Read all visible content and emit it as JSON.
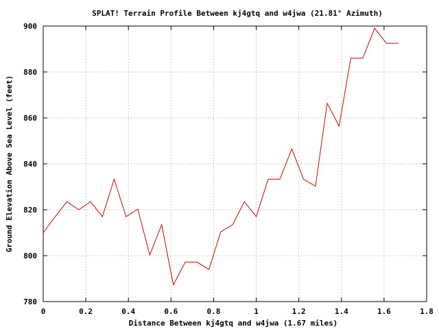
{
  "chart_data": {
    "type": "line",
    "title": "SPLAT! Terrain Profile Between kj4gtq and w4jwa (21.81° Azimuth)",
    "xlabel": "Distance Between kj4gtq and w4jwa (1.67 miles)",
    "ylabel": "Ground Elevation Above Sea Level (feet)",
    "xlim": [
      0,
      1.8
    ],
    "ylim": [
      780,
      900
    ],
    "xticks": [
      "0",
      "0.2",
      "0.4",
      "0.6",
      "0.8",
      "1",
      "1.2",
      "1.4",
      "1.6",
      "1.8"
    ],
    "yticks": [
      "780",
      "800",
      "820",
      "840",
      "860",
      "880",
      "900"
    ],
    "grid": true,
    "line_color": "#cc0000",
    "series": [
      {
        "x": [
          0,
          0.056,
          0.111,
          0.167,
          0.222,
          0.278,
          0.333,
          0.389,
          0.444,
          0.5,
          0.556,
          0.611,
          0.667,
          0.722,
          0.778,
          0.833,
          0.889,
          0.944,
          1.0,
          1.056,
          1.111,
          1.167,
          1.222,
          1.278,
          1.333,
          1.389,
          1.444,
          1.5,
          1.556,
          1.611,
          1.667
        ],
        "y": [
          810,
          817,
          823.5,
          820,
          823.5,
          817,
          833.3,
          817,
          820.3,
          800.3,
          813.5,
          787.3,
          797.2,
          797.2,
          794,
          810.3,
          813.5,
          823.5,
          817,
          833.3,
          833.3,
          846.5,
          833.3,
          830.2,
          866.4,
          856.4,
          886,
          886,
          899,
          892.5,
          892.5
        ]
      }
    ]
  }
}
